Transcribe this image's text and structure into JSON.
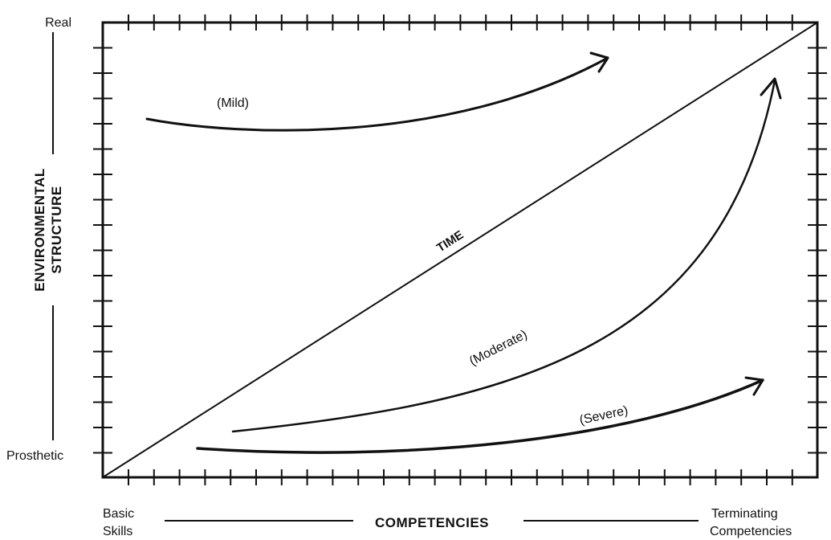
{
  "y_axis": {
    "top_label": "Real",
    "bottom_label": "Prosthetic",
    "title_line1": "ENVIRONMENTAL",
    "title_line2": "STRUCTURE"
  },
  "x_axis": {
    "left_label_line1": "Basic",
    "left_label_line2": "Skills",
    "title": "COMPETENCIES",
    "right_label_line1": "Terminating",
    "right_label_line2": "Competencies"
  },
  "diagonal_label": "TIME",
  "curves": {
    "mild": "(Mild)",
    "moderate": "(Moderate)",
    "severe": "(Severe)"
  }
}
